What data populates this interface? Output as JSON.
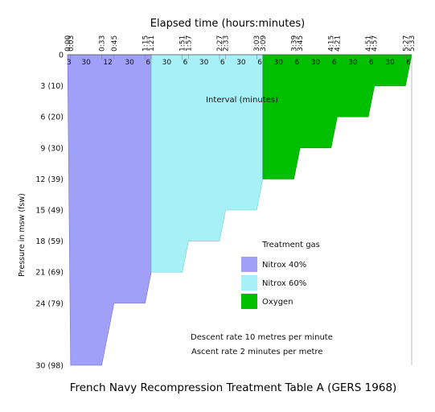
{
  "chart_data": {
    "type": "area",
    "title": "French Navy Recompression Treatment Table A (GERS 1968)",
    "xlabel": "Elapsed time (hours:minutes)",
    "ylabel": "Pressure in msw (fsw)",
    "x_tick_labels": [
      "0:00",
      "0:03",
      "0:33",
      "0:45",
      "1:15",
      "1:21",
      "1:51",
      "1:57",
      "2:27",
      "2:33",
      "3:03",
      "3:09",
      "3:39",
      "3:45",
      "4:15",
      "4:21",
      "4:51",
      "4:57",
      "5:27",
      "5:33"
    ],
    "y_tick_labels": [
      {
        "depth": 0,
        "label": "0"
      },
      {
        "depth": 3,
        "label": "3 (10)"
      },
      {
        "depth": 6,
        "label": "6 (20)"
      },
      {
        "depth": 9,
        "label": "9 (30)"
      },
      {
        "depth": 12,
        "label": "12 (39)"
      },
      {
        "depth": 15,
        "label": "15 (49)"
      },
      {
        "depth": 18,
        "label": "18 (59)"
      },
      {
        "depth": 21,
        "label": "21 (69)"
      },
      {
        "depth": 24,
        "label": "24 (79)"
      },
      {
        "depth": 30,
        "label": "30 (98)"
      }
    ],
    "xlim_minutes": [
      0,
      333
    ],
    "ylim_msw": [
      0,
      30
    ],
    "interval_axis_label": "Interval (minutes)",
    "intervals": [
      {
        "duration": "3",
        "t0": 0,
        "t1": 3,
        "gas": "nitrox40"
      },
      {
        "duration": "30",
        "t0": 3,
        "t1": 33,
        "gas": "nitrox40"
      },
      {
        "duration": "12",
        "t0": 33,
        "t1": 45,
        "gas": "nitrox40"
      },
      {
        "duration": "30",
        "t0": 45,
        "t1": 75,
        "gas": "nitrox40"
      },
      {
        "duration": "6",
        "t0": 75,
        "t1": 81,
        "gas": "nitrox40"
      },
      {
        "duration": "30",
        "t0": 81,
        "t1": 111,
        "gas": "nitrox60"
      },
      {
        "duration": "6",
        "t0": 111,
        "t1": 117,
        "gas": "nitrox60"
      },
      {
        "duration": "30",
        "t0": 117,
        "t1": 147,
        "gas": "nitrox60"
      },
      {
        "duration": "6",
        "t0": 147,
        "t1": 153,
        "gas": "nitrox60"
      },
      {
        "duration": "30",
        "t0": 153,
        "t1": 183,
        "gas": "nitrox60"
      },
      {
        "duration": "6",
        "t0": 183,
        "t1": 189,
        "gas": "nitrox60"
      },
      {
        "duration": "30",
        "t0": 189,
        "t1": 219,
        "gas": "oxygen"
      },
      {
        "duration": "6",
        "t0": 219,
        "t1": 225,
        "gas": "oxygen"
      },
      {
        "duration": "30",
        "t0": 225,
        "t1": 255,
        "gas": "oxygen"
      },
      {
        "duration": "6",
        "t0": 255,
        "t1": 261,
        "gas": "oxygen"
      },
      {
        "duration": "30",
        "t0": 261,
        "t1": 291,
        "gas": "oxygen"
      },
      {
        "duration": "6",
        "t0": 291,
        "t1": 297,
        "gas": "oxygen"
      },
      {
        "duration": "30",
        "t0": 297,
        "t1": 327,
        "gas": "oxygen"
      },
      {
        "duration": "6",
        "t0": 327,
        "t1": 333,
        "gas": "oxygen"
      }
    ],
    "series": [
      {
        "name": "Nitrox 40%",
        "key": "nitrox40",
        "color": "#a0a0f8",
        "edge": "#7070d8",
        "points": [
          [
            0,
            0
          ],
          [
            3,
            30
          ],
          [
            33,
            30
          ],
          [
            45,
            24
          ],
          [
            75,
            24
          ],
          [
            81,
            21
          ]
        ]
      },
      {
        "name": "Nitrox 60%",
        "key": "nitrox60",
        "color": "#a8f0f8",
        "edge": "#70c8d8",
        "points": [
          [
            81,
            21
          ],
          [
            111,
            21
          ],
          [
            117,
            18
          ],
          [
            147,
            18
          ],
          [
            153,
            15
          ],
          [
            183,
            15
          ],
          [
            189,
            12
          ]
        ]
      },
      {
        "name": "Oxygen",
        "key": "oxygen",
        "color": "#00c000",
        "edge": "#009000",
        "points": [
          [
            189,
            12
          ],
          [
            219,
            12
          ],
          [
            225,
            9
          ],
          [
            255,
            9
          ],
          [
            261,
            6
          ],
          [
            291,
            6
          ],
          [
            297,
            3
          ],
          [
            327,
            3
          ],
          [
            333,
            0
          ]
        ]
      }
    ],
    "legend": {
      "title": "Treatment gas",
      "placement": "center-right"
    },
    "annotations": [
      "Descent rate 10 metres per minute",
      "Ascent rate 2 minutes per metre"
    ]
  }
}
